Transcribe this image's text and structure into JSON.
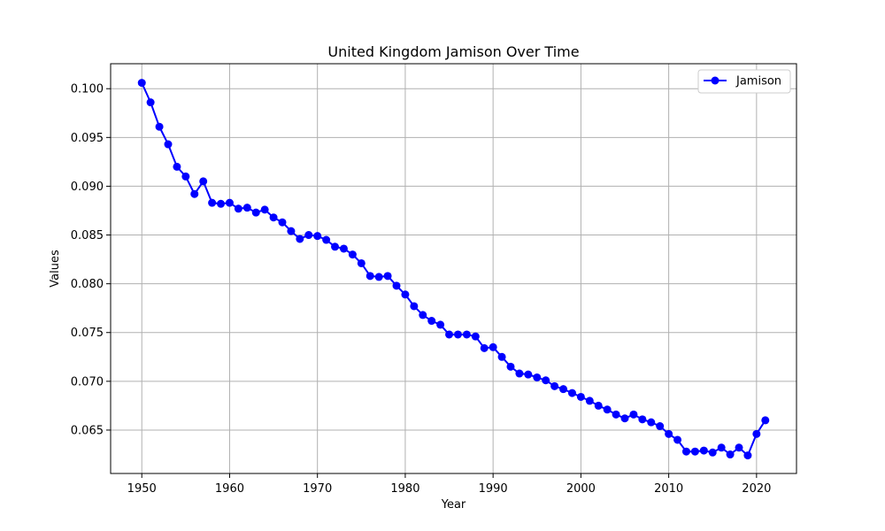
{
  "chart_data": {
    "type": "line",
    "title": "United Kingdom Jamison Over Time",
    "xlabel": "Year",
    "ylabel": "Values",
    "xlim": [
      1946.45,
      2024.55
    ],
    "ylim": [
      0.06055,
      0.10256
    ],
    "xticks": [
      1950,
      1960,
      1970,
      1980,
      1990,
      2000,
      2010,
      2020
    ],
    "yticks": [
      0.065,
      0.07,
      0.075,
      0.08,
      0.085,
      0.09,
      0.095,
      0.1
    ],
    "ytick_labels": [
      "0.065",
      "0.070",
      "0.075",
      "0.080",
      "0.085",
      "0.090",
      "0.095",
      "0.100"
    ],
    "grid": true,
    "legend_position": "top-right",
    "color": "#0000ff",
    "x": [
      1950,
      1951,
      1952,
      1953,
      1954,
      1955,
      1956,
      1957,
      1958,
      1959,
      1960,
      1961,
      1962,
      1963,
      1964,
      1965,
      1966,
      1967,
      1968,
      1969,
      1970,
      1971,
      1972,
      1973,
      1974,
      1975,
      1976,
      1977,
      1978,
      1979,
      1980,
      1981,
      1982,
      1983,
      1984,
      1985,
      1986,
      1987,
      1988,
      1989,
      1990,
      1991,
      1992,
      1993,
      1994,
      1995,
      1996,
      1997,
      1998,
      1999,
      2000,
      2001,
      2002,
      2003,
      2004,
      2005,
      2006,
      2007,
      2008,
      2009,
      2010,
      2011,
      2012,
      2013,
      2014,
      2015,
      2016,
      2017,
      2018,
      2019,
      2020,
      2021
    ],
    "series": [
      {
        "name": "Jamison",
        "values": [
          0.1006,
          0.0986,
          0.0961,
          0.0943,
          0.092,
          0.091,
          0.0892,
          0.0905,
          0.0883,
          0.0882,
          0.0883,
          0.0877,
          0.0878,
          0.0873,
          0.0876,
          0.0868,
          0.0863,
          0.0854,
          0.0846,
          0.085,
          0.0849,
          0.0845,
          0.0838,
          0.0836,
          0.083,
          0.0821,
          0.0808,
          0.0807,
          0.0808,
          0.0798,
          0.0789,
          0.0777,
          0.0768,
          0.0762,
          0.0758,
          0.0748,
          0.0748,
          0.0748,
          0.0746,
          0.0734,
          0.0735,
          0.0725,
          0.0715,
          0.0708,
          0.0707,
          0.0704,
          0.0701,
          0.0695,
          0.0692,
          0.0688,
          0.0684,
          0.068,
          0.0675,
          0.0671,
          0.0666,
          0.0662,
          0.0666,
          0.0661,
          0.0658,
          0.0654,
          0.0646,
          0.064,
          0.0628,
          0.0628,
          0.0629,
          0.0627,
          0.0632,
          0.0625,
          0.0632,
          0.0624,
          0.0646,
          0.066
        ]
      }
    ]
  }
}
